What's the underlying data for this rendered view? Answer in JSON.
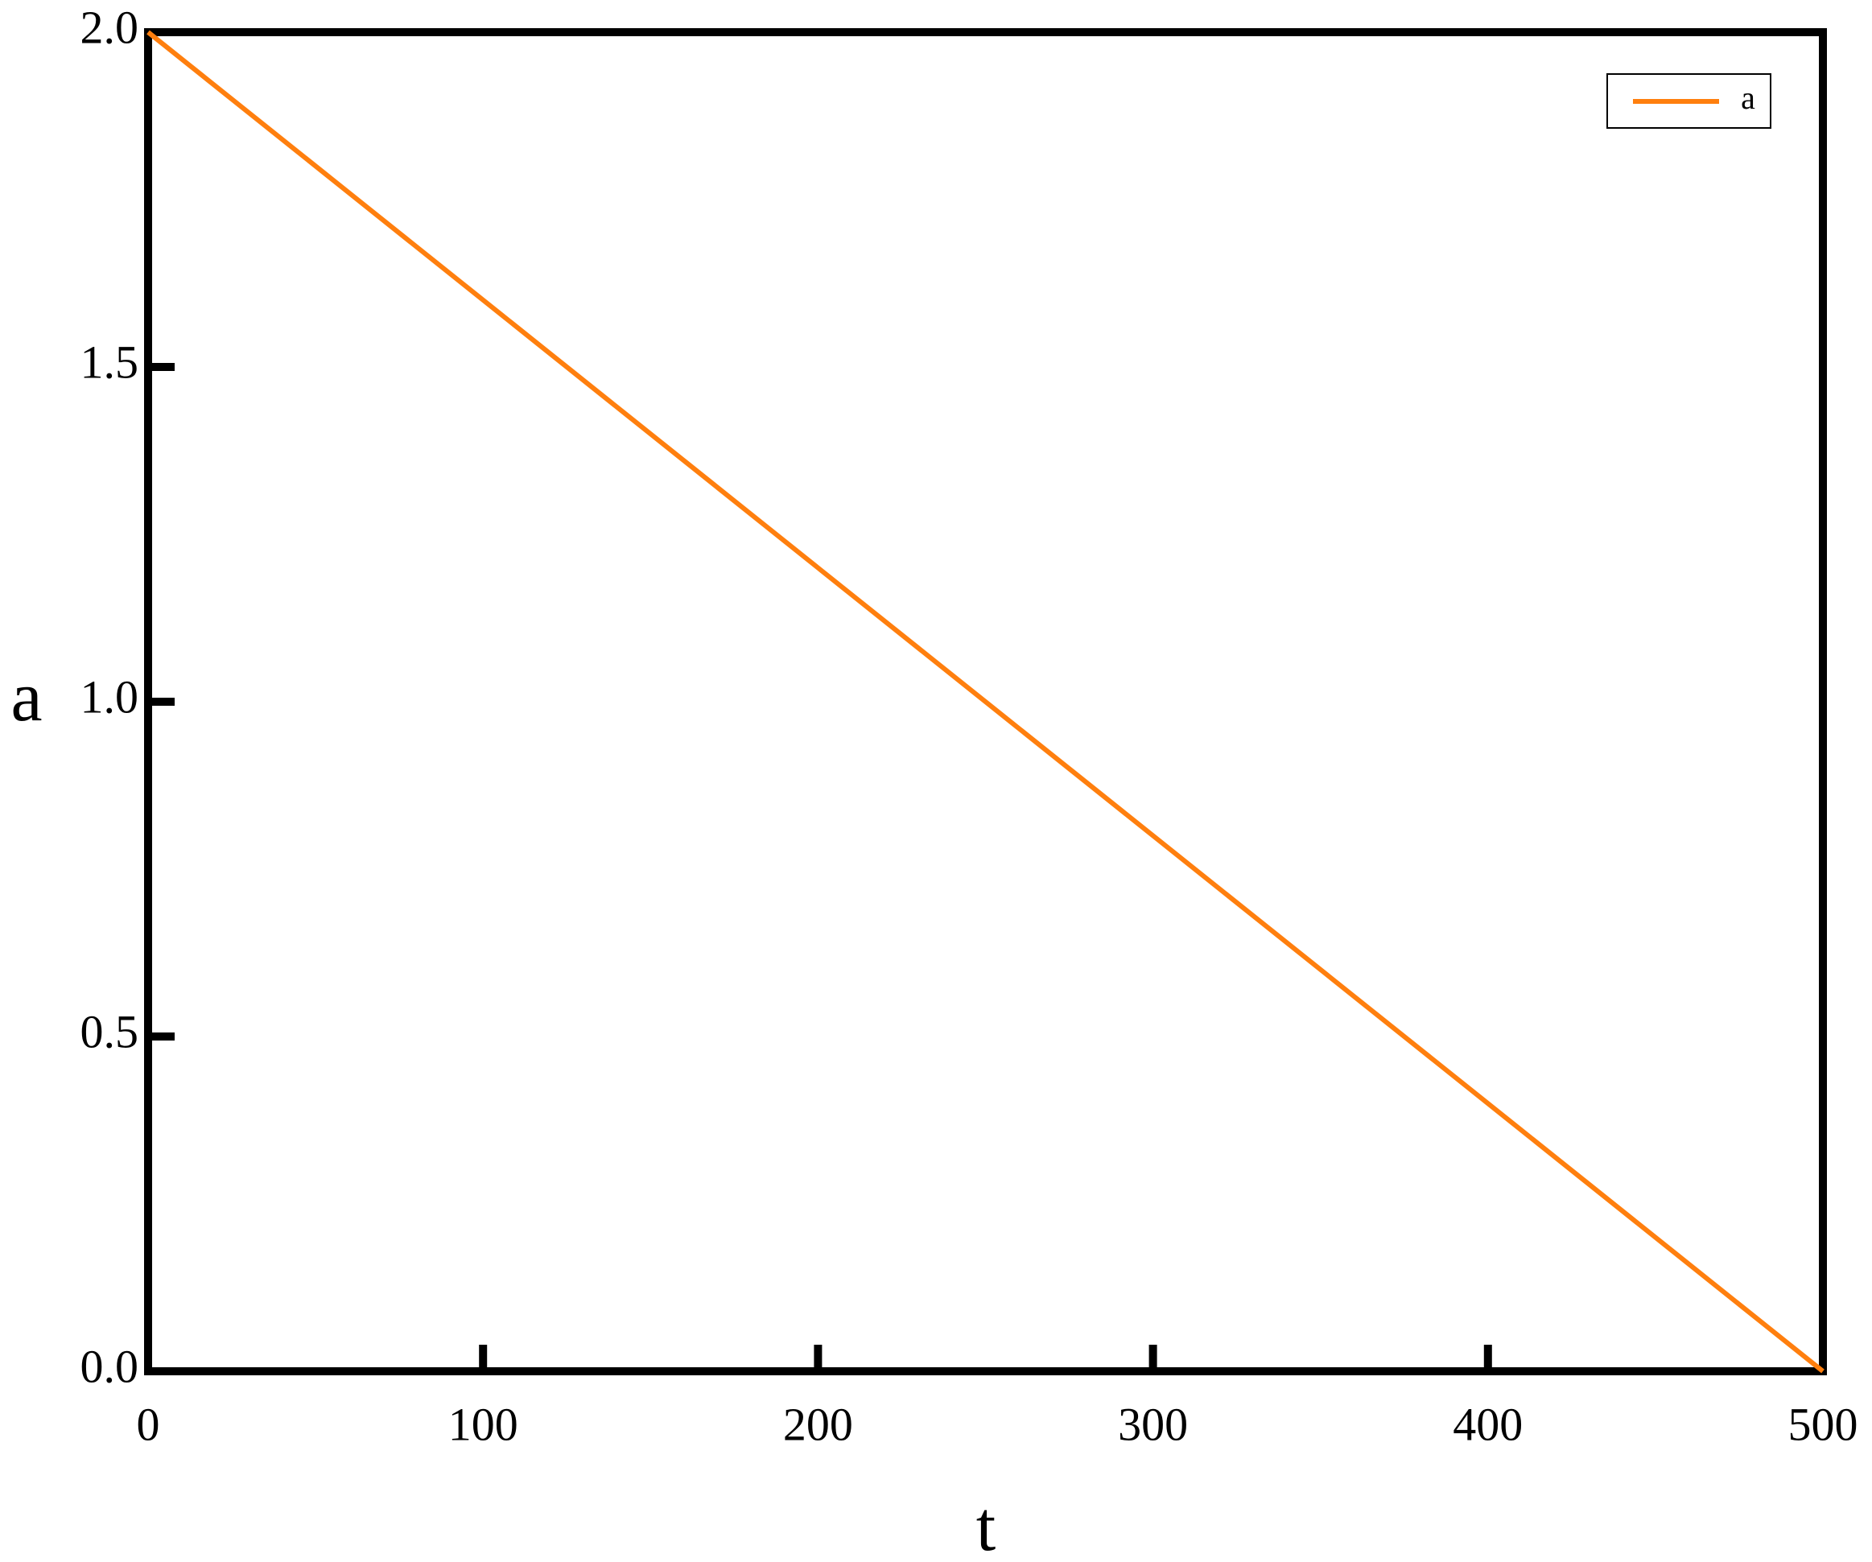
{
  "chart_data": {
    "type": "line",
    "x": [
      0,
      500
    ],
    "series": [
      {
        "name": "a",
        "color": "#ff7f0e",
        "values": [
          2.0,
          0.0
        ]
      }
    ],
    "xlim": [
      0,
      500
    ],
    "xticks": [
      0,
      100,
      200,
      300,
      400,
      500
    ],
    "ylim": [
      0,
      2
    ],
    "yticks": [
      {
        "value": 0,
        "label": "0.0"
      },
      0.5,
      {
        "value": 1,
        "label": "1.0"
      },
      1.5,
      {
        "value": 2,
        "label": "2.0"
      }
    ],
    "x_label": "t",
    "y_label": "a",
    "grid": false,
    "legend": "upper right"
  }
}
